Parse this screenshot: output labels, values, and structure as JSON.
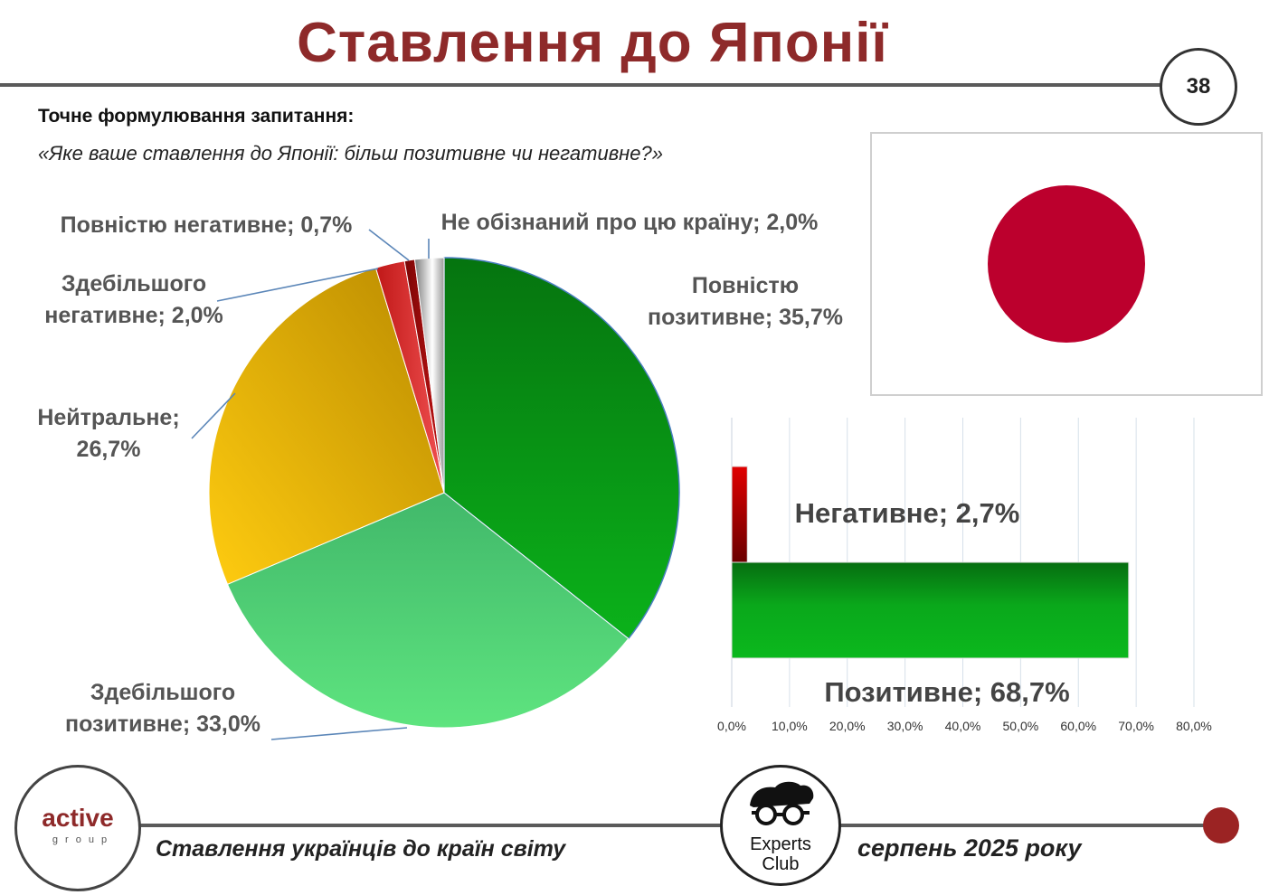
{
  "header": {
    "title": "Ставлення до Японії",
    "page_number": "38"
  },
  "question": {
    "heading": "Точне формулювання запитання:",
    "text": "«Яке ваше ставлення до Японії: більш позитивне чи негативне?»"
  },
  "footer": {
    "logo_left_main": "active",
    "logo_left_sub": "group",
    "logo_right_line1": "Experts",
    "logo_right_line2": "Club",
    "subtitle": "Ставлення українців до країн світу",
    "date": "серпень 2025 року"
  },
  "colors": {
    "title": "#8e2a2a",
    "flag_disc": "#bc002d",
    "full_positive": "#0f9a18",
    "mostly_positive": "#58d679",
    "neutral": "#f0b400",
    "mostly_negative": "#e23a3a",
    "full_negative": "#a80f0f",
    "unaware": "#b5b5b5",
    "positive_bar": "#0aa61a",
    "negative_bar": "#c00000",
    "leader": "#5b86b8"
  },
  "chart_data": [
    {
      "type": "pie",
      "slices": [
        {
          "label_lines": [
            "Повністю",
            "позитивне; 35,7%"
          ],
          "value": 35.7,
          "color_key": "full_positive"
        },
        {
          "label_lines": [
            "Здебільшого",
            "позитивне; 33,0%"
          ],
          "value": 33.0,
          "color_key": "mostly_positive"
        },
        {
          "label_lines": [
            "Нейтральне;",
            "26,7%"
          ],
          "value": 26.7,
          "color_key": "neutral"
        },
        {
          "label_lines": [
            "Здебільшого",
            "негативне; 2,0%"
          ],
          "value": 2.0,
          "color_key": "mostly_negative"
        },
        {
          "label_lines": [
            "Повністю негативне; 0,7%"
          ],
          "value": 0.7,
          "color_key": "full_negative"
        },
        {
          "label_lines": [
            "Не обізнаний про цю країну; 2,0%"
          ],
          "value": 2.0,
          "color_key": "unaware"
        }
      ]
    },
    {
      "type": "bar",
      "orientation": "horizontal",
      "categories": [
        "Позитивне",
        "Негативне"
      ],
      "values": [
        68.7,
        2.7
      ],
      "data_labels": [
        "Позитивне; 68,7%",
        "Негативне; 2,7%"
      ],
      "color_keys": [
        "positive_bar",
        "negative_bar"
      ],
      "xlim": [
        0,
        80
      ],
      "x_ticks": [
        "0,0%",
        "10,0%",
        "20,0%",
        "30,0%",
        "40,0%",
        "50,0%",
        "60,0%",
        "70,0%",
        "80,0%"
      ],
      "grid": true
    }
  ]
}
